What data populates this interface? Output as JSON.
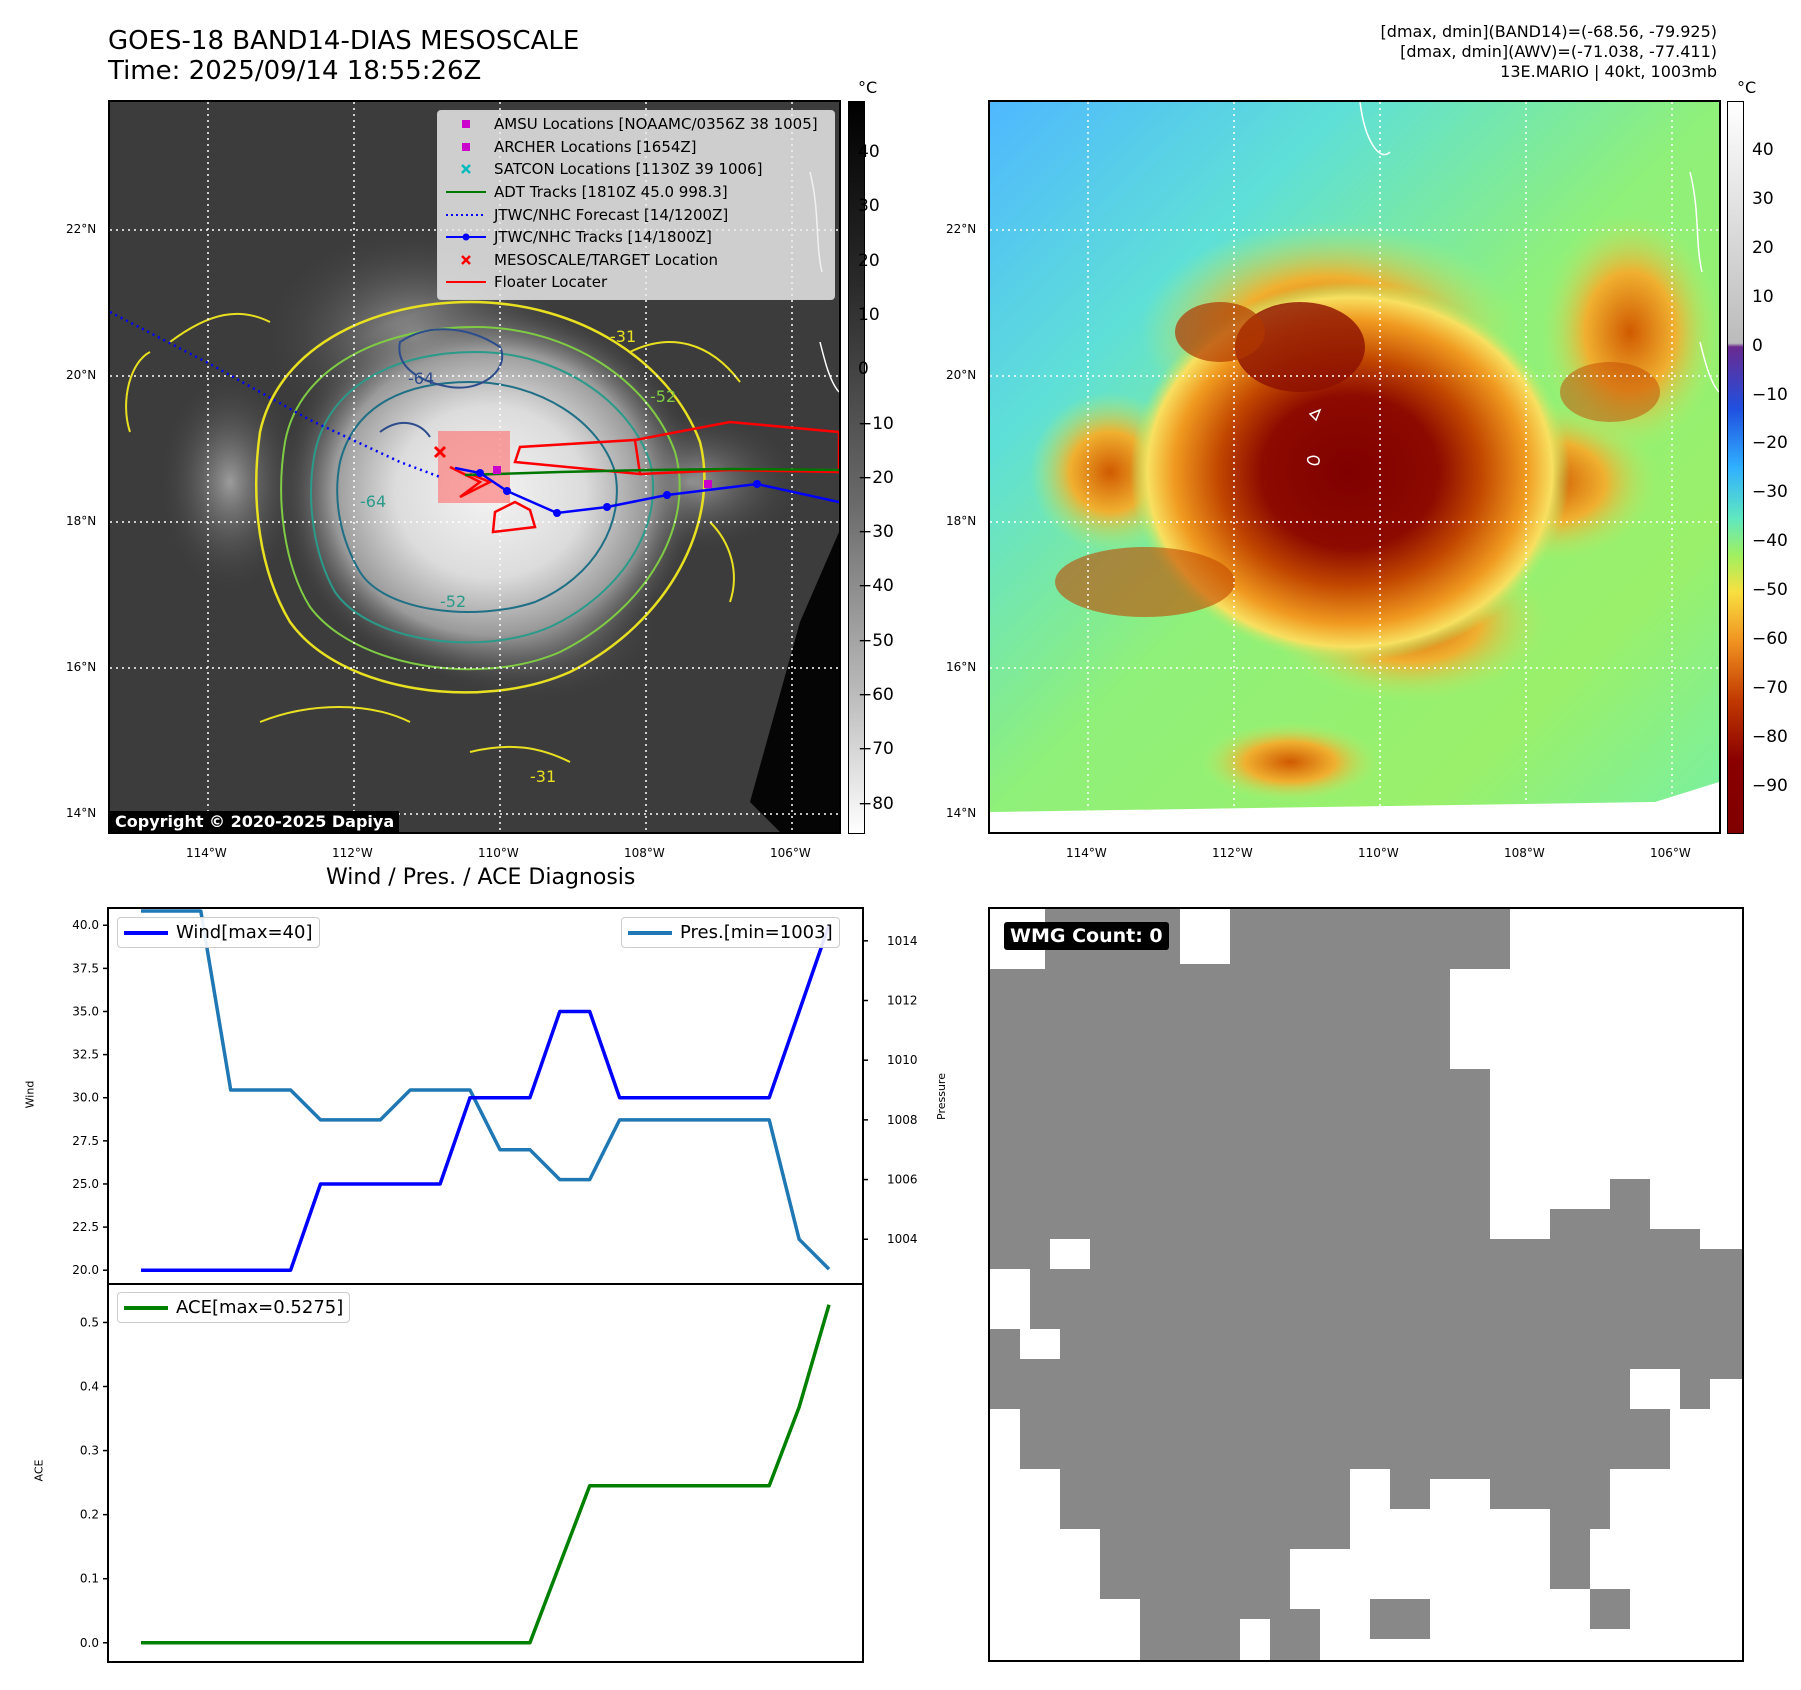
{
  "header": {
    "title_line1": "GOES-18 BAND14-DIAS MESOSCALE",
    "title_line2": "Time: 2025/09/14 18:55:26Z",
    "info_line1": "[dmax, dmin](BAND14)=(-68.56, -79.925)",
    "info_line2": "[dmax, dmin](AWV)=(-71.038, -77.411)",
    "info_line3": "13E.MARIO | 40kt, 1003mb"
  },
  "maps": {
    "lat_labels": [
      "22°N",
      "20°N",
      "18°N",
      "16°N",
      "14°N"
    ],
    "lon_labels": [
      "114°W",
      "112°W",
      "110°W",
      "108°W",
      "106°W"
    ],
    "copyright": "Copyright © 2020-2025 Dapiya",
    "unit": "°C",
    "colorbar_gray_ticks": [
      "40",
      "30",
      "20",
      "10",
      "0",
      "−10",
      "−20",
      "−30",
      "−40",
      "−50",
      "−60",
      "−70",
      "−80"
    ],
    "colorbar_color_ticks": [
      "40",
      "30",
      "20",
      "10",
      "0",
      "−10",
      "−20",
      "−30",
      "−40",
      "−50",
      "−60",
      "−70",
      "−80",
      "−90"
    ],
    "contour_labels": [
      "-64",
      "-64",
      "-52",
      "-52",
      "-31",
      "-31"
    ],
    "legend": [
      {
        "label": "AMSU Locations [NOAAMC/0356Z 38 1005]",
        "symbol": "square",
        "color": "#cc00cc"
      },
      {
        "label": "ARCHER Locations [1654Z]",
        "symbol": "square",
        "color": "#cc00cc"
      },
      {
        "label": "SATCON Locations [1130Z 39 1006]",
        "symbol": "x",
        "color": "#00bbbb"
      },
      {
        "label": "ADT Tracks [1810Z 45.0 998.3]",
        "symbol": "line",
        "color": "#007700"
      },
      {
        "label": "JTWC/NHC Forecast [14/1200Z]",
        "symbol": "dotted",
        "color": "#0000ff"
      },
      {
        "label": "JTWC/NHC Tracks [14/1800Z]",
        "symbol": "line-dot",
        "color": "#0000ff"
      },
      {
        "label": "MESOSCALE/TARGET Location",
        "symbol": "x",
        "color": "#ff0000"
      },
      {
        "label": "Floater Locater",
        "symbol": "line",
        "color": "#ff0000"
      }
    ]
  },
  "diagnosis": {
    "title": "Wind / Pres. / ACE Diagnosis",
    "wind_ylabel": "Wind",
    "pres_ylabel": "Pressure",
    "ace_ylabel": "ACE",
    "wind_legend": "Wind[max=40]",
    "pres_legend": "Pres.[min=1003]",
    "ace_legend": "ACE[max=0.5275]",
    "wind_ticks": [
      "40.0",
      "37.5",
      "35.0",
      "32.5",
      "30.0",
      "27.5",
      "25.0",
      "22.5",
      "20.0"
    ],
    "pres_ticks": [
      "1014",
      "1012",
      "1010",
      "1008",
      "1006",
      "1004"
    ],
    "ace_ticks": [
      "0.5",
      "0.4",
      "0.3",
      "0.2",
      "0.1",
      "0.0"
    ]
  },
  "wmg": {
    "label": "WMG Count: 0"
  },
  "chart_data": [
    {
      "type": "line",
      "title": "Wind / Pres. / ACE Diagnosis",
      "ylabel": "Wind",
      "ylim": [
        19.2,
        41.0
      ],
      "series": [
        {
          "name": "Wind[max=40]",
          "color": "#0000ff",
          "values": [
            20,
            20,
            20,
            20,
            20,
            20,
            25,
            25,
            25,
            25,
            25,
            30,
            30,
            30,
            35,
            35,
            30,
            30,
            30,
            30,
            30,
            30,
            35,
            40
          ]
        }
      ]
    },
    {
      "type": "line",
      "ylabel": "Pressure",
      "ylim": [
        1002.5,
        1015.1
      ],
      "series": [
        {
          "name": "Pres.[min=1003]",
          "color": "#1f77b4",
          "values": [
            1015,
            1015,
            1015,
            1009,
            1009,
            1009,
            1008,
            1008,
            1008,
            1009,
            1009,
            1009,
            1007,
            1007,
            1006,
            1006,
            1008,
            1008,
            1008,
            1008,
            1008,
            1008,
            1004,
            1003
          ]
        }
      ]
    },
    {
      "type": "line",
      "ylabel": "ACE",
      "ylim": [
        -0.03,
        0.56
      ],
      "series": [
        {
          "name": "ACE[max=0.5275]",
          "color": "#008000",
          "values": [
            0,
            0,
            0,
            0,
            0,
            0,
            0,
            0,
            0,
            0,
            0,
            0,
            0,
            0,
            0.1225,
            0.245,
            0.245,
            0.245,
            0.245,
            0.245,
            0.245,
            0.245,
            0.3675,
            0.5275
          ]
        }
      ]
    }
  ]
}
